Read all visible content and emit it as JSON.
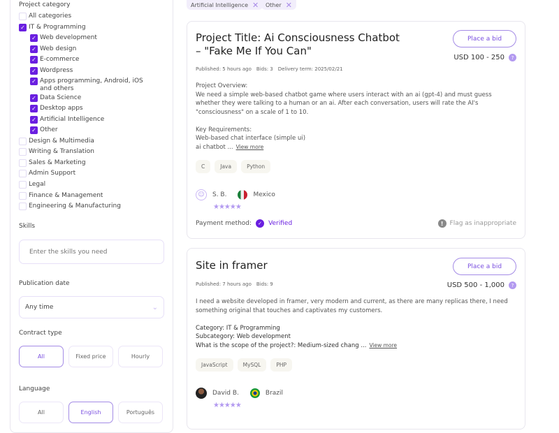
{
  "sidebar": {
    "category_title": "Project category",
    "categories": [
      {
        "label": "All categories",
        "checked": false,
        "sub": false
      },
      {
        "label": "IT & Programming",
        "checked": true,
        "sub": false
      },
      {
        "label": "Web development",
        "checked": true,
        "sub": true
      },
      {
        "label": "Web design",
        "checked": true,
        "sub": true
      },
      {
        "label": "E-commerce",
        "checked": true,
        "sub": true
      },
      {
        "label": "Wordpress",
        "checked": true,
        "sub": true
      },
      {
        "label": "Apps programming, Android, iOS and others",
        "checked": true,
        "sub": true
      },
      {
        "label": "Data Science",
        "checked": true,
        "sub": true
      },
      {
        "label": "Desktop apps",
        "checked": true,
        "sub": true
      },
      {
        "label": "Artificial Intelligence",
        "checked": true,
        "sub": true
      },
      {
        "label": "Other",
        "checked": true,
        "sub": true
      },
      {
        "label": "Design & Multimedia",
        "checked": false,
        "sub": false
      },
      {
        "label": "Writing & Translation",
        "checked": false,
        "sub": false
      },
      {
        "label": "Sales & Marketing",
        "checked": false,
        "sub": false
      },
      {
        "label": "Admin Support",
        "checked": false,
        "sub": false
      },
      {
        "label": "Legal",
        "checked": false,
        "sub": false
      },
      {
        "label": "Finance & Management",
        "checked": false,
        "sub": false
      },
      {
        "label": "Engineering & Manufacturing",
        "checked": false,
        "sub": false
      }
    ],
    "skills_title": "Skills",
    "skills_placeholder": "Enter the skills you need",
    "pubdate_title": "Publication date",
    "pubdate_value": "Any time",
    "contract_title": "Contract type",
    "contract_options": [
      "All",
      "Fixed price",
      "Hourly"
    ],
    "contract_selected": "All",
    "language_title": "Language",
    "language_options": [
      "All",
      "English",
      "Português"
    ],
    "language_selected": "English"
  },
  "filters": [
    "Artificial Intelligence",
    "Other"
  ],
  "accent": "#6a1fe0",
  "projects": [
    {
      "title": "Project Title: Ai Consciousness Chatbot – \"Fake Me If You Can\"",
      "bid": "Place a bid",
      "price": "USD 100 - 250",
      "published": "Published: 5 hours ago",
      "bids": "Bids: 3",
      "delivery": "Delivery term: 2025/02/21",
      "desc": [
        "Project Overview:",
        "We need a simple web-based chatbot game where users interact with an ai (gpt-4) and must guess whether they were talking to a human or an ai. After each conversation, users will rate the AI's \"consciousness\" on a scale of 1 to 10.",
        "",
        "Key Requirements:",
        "Web-based chat interface (simple ui)",
        "ai chatbot ..."
      ],
      "view_more": "View more",
      "tags": [
        "C",
        "Java",
        "Python"
      ],
      "user": "S. B.",
      "country": "Mexico",
      "rating": 5,
      "payment_label": "Payment method:",
      "payment_status": "Verified",
      "flag": "Flag as inappropriate"
    },
    {
      "title": "Site in framer",
      "bid": "Place a bid",
      "price": "USD 500 - 1,000",
      "published": "Published: 7 hours ago",
      "bids": "Bids: 9",
      "desc": [
        "I need a website developed in framer, very modern and current, as there are many replicas there, I need something original that touches and captivates my customers.",
        "",
        "Category: IT & Programming",
        "Subcategory: Web development",
        "What is the scope of the project?: Medium-sized chang ..."
      ],
      "view_more": "View more",
      "tags": [
        "JavaScript",
        "MySQL",
        "PHP"
      ],
      "user": "David B.",
      "country": "Brazil",
      "rating": 5
    }
  ]
}
